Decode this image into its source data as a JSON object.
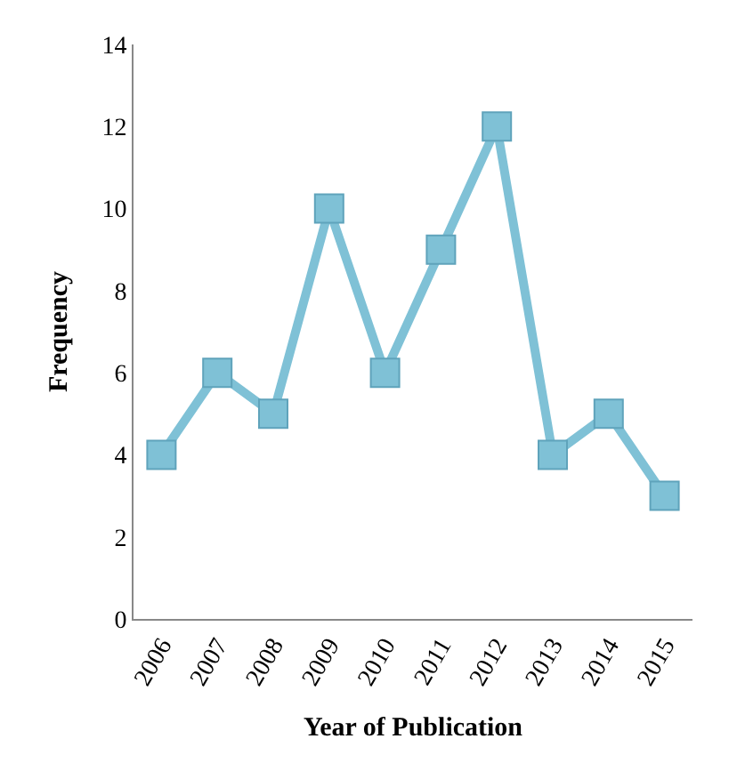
{
  "chart_data": {
    "type": "line",
    "xlabel": "Year of Publication",
    "ylabel": "Frequency",
    "categories": [
      "2006",
      "2007",
      "2008",
      "2009",
      "2010",
      "2011",
      "2012",
      "2013",
      "2014",
      "2015"
    ],
    "series": [
      {
        "color": "#7fc1d6",
        "values": [
          4,
          6,
          5,
          10,
          6,
          9,
          12,
          4,
          5,
          3
        ]
      }
    ],
    "ylim": [
      0,
      14
    ],
    "yticks": [
      0,
      2,
      4,
      6,
      8,
      10,
      12,
      14
    ],
    "legend": false,
    "marker": "square",
    "line_style": "solid"
  }
}
